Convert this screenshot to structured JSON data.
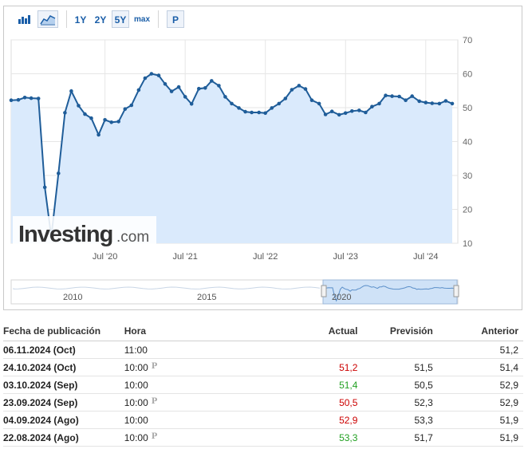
{
  "toolbar": {
    "ranges": [
      "1Y",
      "2Y",
      "5Y",
      "max"
    ],
    "active_range": "5Y",
    "p_label": "P",
    "icons": [
      "bar-chart-icon",
      "area-chart-icon"
    ]
  },
  "colors": {
    "line": "#1f5d99",
    "fill": "#daeafc",
    "positive": "#22a022",
    "negative": "#cc0000",
    "link": "#1a5ea8"
  },
  "watermark": {
    "brand": "Investing",
    "suffix": ".com"
  },
  "chart_data": {
    "type": "area",
    "ylim": [
      10,
      70
    ],
    "yticks": [
      10,
      20,
      30,
      40,
      50,
      60,
      70
    ],
    "xlim": [
      2019.33,
      2024.9
    ],
    "xticks": [
      {
        "value": 2020.5,
        "label": "Jul '20"
      },
      {
        "value": 2021.5,
        "label": "Jul '21"
      },
      {
        "value": 2022.5,
        "label": "Jul '22"
      },
      {
        "value": 2023.5,
        "label": "Jul '23"
      },
      {
        "value": 2024.5,
        "label": "Jul '24"
      }
    ],
    "grid": true,
    "x": [
      2019.33,
      2019.42,
      2019.5,
      2019.58,
      2019.67,
      2019.75,
      2019.83,
      2019.92,
      2020.0,
      2020.08,
      2020.17,
      2020.25,
      2020.33,
      2020.42,
      2020.5,
      2020.58,
      2020.67,
      2020.75,
      2020.83,
      2020.92,
      2021.0,
      2021.08,
      2021.17,
      2021.25,
      2021.33,
      2021.42,
      2021.5,
      2021.58,
      2021.67,
      2021.75,
      2021.83,
      2021.92,
      2022.0,
      2022.08,
      2022.17,
      2022.25,
      2022.33,
      2022.42,
      2022.5,
      2022.58,
      2022.67,
      2022.75,
      2022.83,
      2022.92,
      2023.0,
      2023.08,
      2023.17,
      2023.25,
      2023.33,
      2023.42,
      2023.5,
      2023.58,
      2023.67,
      2023.75,
      2023.83,
      2023.92,
      2024.0,
      2024.08,
      2024.17,
      2024.25,
      2024.33,
      2024.42,
      2024.5,
      2024.58,
      2024.67,
      2024.75,
      2024.83
    ],
    "y": [
      52.2,
      52.3,
      53.0,
      52.8,
      52.7,
      26.5,
      12.0,
      30.6,
      48.5,
      54.9,
      50.6,
      48.1,
      46.9,
      42.0,
      46.4,
      45.7,
      45.9,
      49.6,
      50.7,
      55.2,
      58.7,
      60.0,
      59.5,
      57.0,
      54.8,
      56.1,
      53.2,
      51.1,
      55.6,
      55.8,
      57.9,
      56.5,
      53.2,
      51.2,
      49.9,
      48.8,
      48.6,
      48.6,
      48.4,
      49.9,
      51.2,
      52.7,
      55.3,
      56.5,
      55.5,
      52.2,
      51.2,
      48.0,
      48.9,
      47.9,
      48.4,
      49.0,
      49.2,
      48.6,
      50.3,
      51.2,
      53.6,
      53.4,
      53.3,
      52.2,
      53.4,
      51.9,
      51.5,
      51.3,
      51.2,
      52.0,
      51.2
    ],
    "navigator": {
      "year_labels": [
        "2010",
        "2015",
        "2020"
      ]
    }
  },
  "table": {
    "headers": {
      "date": "Fecha de publicación",
      "time": "Hora",
      "actual": "Actual",
      "forecast": "Previsión",
      "previous": "Anterior"
    },
    "rows": [
      {
        "date": "06.11.2024 (Oct)",
        "time": "11:00",
        "prelim": false,
        "actual": "",
        "actual_status": "none",
        "forecast": "",
        "previous": "51,2"
      },
      {
        "date": "24.10.2024 (Oct)",
        "time": "10:00",
        "prelim": true,
        "actual": "51,2",
        "actual_status": "negative",
        "forecast": "51,5",
        "previous": "51,4"
      },
      {
        "date": "03.10.2024 (Sep)",
        "time": "10:00",
        "prelim": false,
        "actual": "51,4",
        "actual_status": "positive",
        "forecast": "50,5",
        "previous": "52,9"
      },
      {
        "date": "23.09.2024 (Sep)",
        "time": "10:00",
        "prelim": true,
        "actual": "50,5",
        "actual_status": "negative",
        "forecast": "52,3",
        "previous": "52,9"
      },
      {
        "date": "04.09.2024 (Ago)",
        "time": "10:00",
        "prelim": false,
        "actual": "52,9",
        "actual_status": "negative",
        "forecast": "53,3",
        "previous": "51,9"
      },
      {
        "date": "22.08.2024 (Ago)",
        "time": "10:00",
        "prelim": true,
        "actual": "53,3",
        "actual_status": "positive",
        "forecast": "51,7",
        "previous": "51,9"
      }
    ],
    "prelim_glyph": "P"
  }
}
